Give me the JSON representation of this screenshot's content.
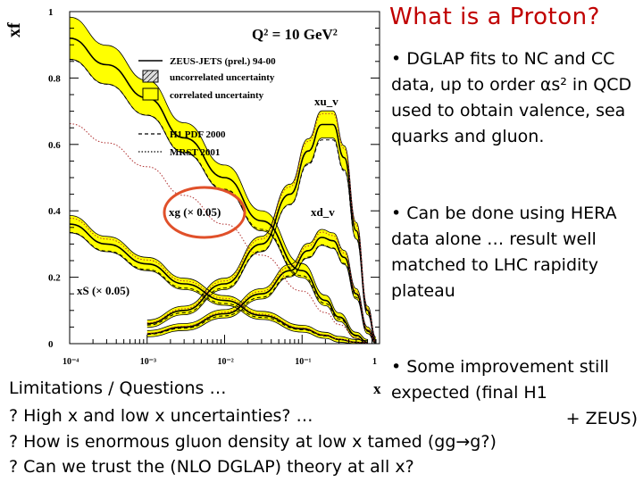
{
  "slide": {
    "title": "What is  a Proton?",
    "bullet1": "• DGLAP fits to NC and CC data, up to order αs² in QCD used to obtain valence, sea quarks and gluon.",
    "bullet2": "• Can be done using HERA data alone … result well matched to LHC rapidity plateau",
    "bullet3_main": "• Some improvement still expected (final H1",
    "bullet3_end": "+ ZEUS)",
    "bottom_lines": [
      "Limitations / Questions …",
      "? High x and low x uncertainties? …",
      "? How is enormous gluon density at low x tamed (gg→g?)",
      "? Can we trust the (NLO DGLAP) theory at all x?"
    ]
  },
  "colors": {
    "title": "#c00000",
    "band": "#ffff00",
    "highlight_ellipse": "#e0502a",
    "curves": "#000000"
  },
  "chart_data": {
    "type": "line",
    "x_scale": "log",
    "xlim": [
      0.0001,
      1
    ],
    "ylim": [
      0,
      1
    ],
    "xlabel": "x",
    "ylabel": "xf",
    "x_ticks": [
      "10⁻⁴",
      "10⁻³",
      "10⁻²",
      "10⁻¹",
      "1"
    ],
    "y_ticks": [
      "0",
      "0.2",
      "0.4",
      "0.6",
      "0.8",
      "1"
    ],
    "plot_label": "Q² = 10 GeV²",
    "legend": [
      {
        "label": "ZEUS-JETS (prel.) 94-00",
        "style": "solid"
      },
      {
        "label": "uncorrelated uncertainty",
        "style": "hatched box"
      },
      {
        "label": "correlated uncertainty",
        "style": "yellow box"
      },
      {
        "label": "H1 PDF 2000",
        "style": "dashed"
      },
      {
        "label": "MRST 2001",
        "style": "dotted"
      }
    ],
    "legend_position": "top-left",
    "series": [
      {
        "name": "xu_v",
        "x": [
          0.001,
          0.003,
          0.01,
          0.03,
          0.07,
          0.12,
          0.18,
          0.25,
          0.35,
          0.5,
          0.7,
          0.9
        ],
        "y": [
          0.06,
          0.1,
          0.18,
          0.3,
          0.45,
          0.58,
          0.66,
          0.66,
          0.56,
          0.34,
          0.1,
          0.01
        ]
      },
      {
        "name": "xd_v",
        "x": [
          0.001,
          0.003,
          0.01,
          0.03,
          0.07,
          0.12,
          0.18,
          0.25,
          0.35,
          0.5,
          0.7,
          0.9
        ],
        "y": [
          0.03,
          0.05,
          0.09,
          0.15,
          0.22,
          0.28,
          0.32,
          0.31,
          0.26,
          0.15,
          0.04,
          0.005
        ]
      },
      {
        "name": "xg (× 0.05)",
        "x": [
          0.0001,
          0.0003,
          0.001,
          0.003,
          0.01,
          0.03,
          0.1,
          0.2,
          0.3,
          0.5,
          0.7
        ],
        "y": [
          0.92,
          0.84,
          0.74,
          0.62,
          0.5,
          0.37,
          0.22,
          0.13,
          0.08,
          0.025,
          0.004
        ]
      },
      {
        "name": "xS (× 0.05)",
        "x": [
          0.0001,
          0.0003,
          0.001,
          0.003,
          0.01,
          0.03,
          0.1,
          0.2,
          0.3,
          0.5,
          0.7
        ],
        "y": [
          0.36,
          0.3,
          0.24,
          0.18,
          0.13,
          0.085,
          0.045,
          0.025,
          0.013,
          0.004,
          0.001
        ]
      }
    ]
  }
}
